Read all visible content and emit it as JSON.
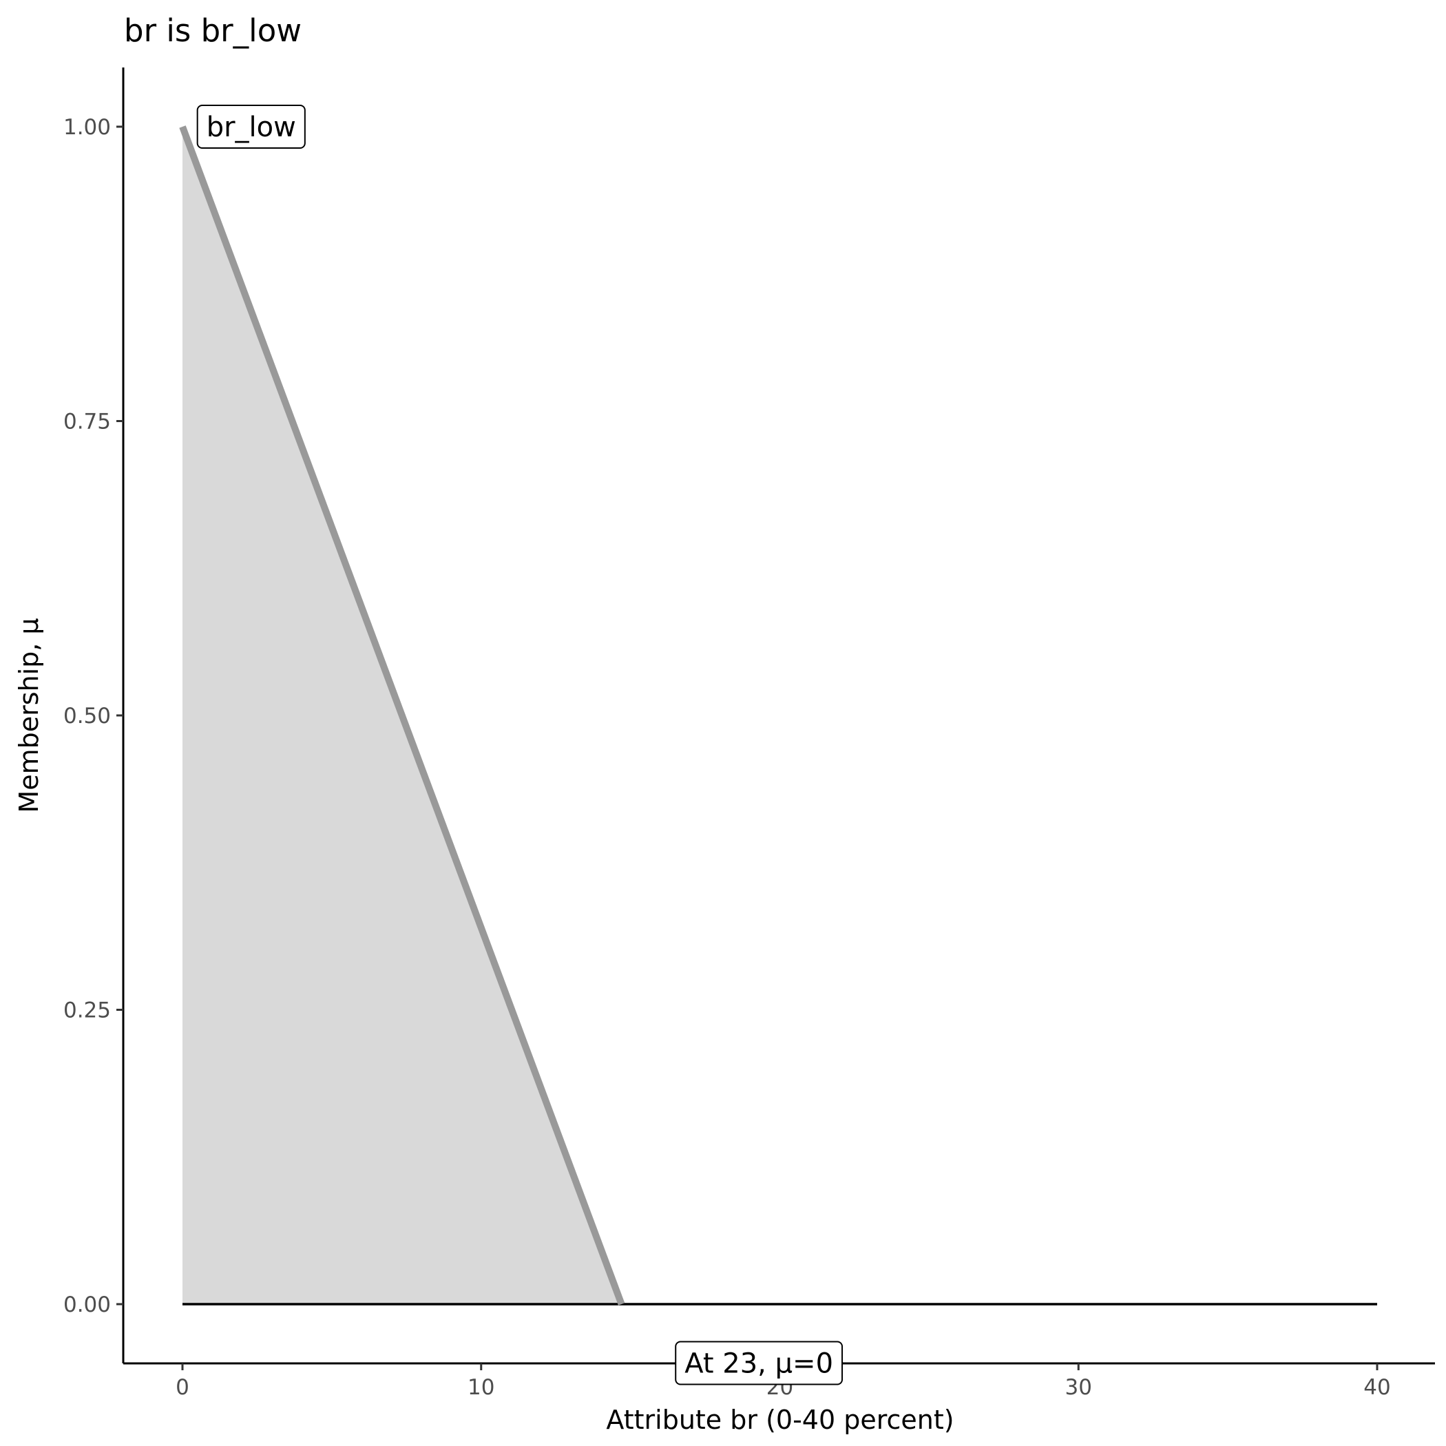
{
  "chart_data": {
    "type": "area",
    "title": "br is br_low",
    "xlabel": "Attribute br (0-40 percent)",
    "ylabel": "Membership, μ",
    "xlim": [
      -2,
      42
    ],
    "ylim": [
      -0.05,
      1.05
    ],
    "x_ticks": [
      0,
      10,
      20,
      30,
      40
    ],
    "x_tick_labels": [
      "0",
      "10",
      "20",
      "30",
      "40"
    ],
    "y_ticks": [
      0,
      0.25,
      0.5,
      0.75,
      1
    ],
    "y_tick_labels": [
      "0.00",
      "0.25",
      "0.50",
      "0.75",
      "1.00"
    ],
    "grid": false,
    "membership": {
      "x": [
        0,
        14.7
      ],
      "y": [
        1,
        0
      ],
      "line_color": "#999999",
      "fill_color": "#d9d9d9"
    },
    "baseline": {
      "x": [
        0,
        40
      ],
      "y": [
        0,
        0
      ],
      "color": "#000000"
    },
    "annotations": [
      {
        "text": "br_low",
        "x": 0.5,
        "y": 1.0,
        "anchor": "start"
      },
      {
        "text": "At 23, μ=0",
        "x": 19.3,
        "y": -0.05,
        "anchor": "middle"
      }
    ]
  }
}
